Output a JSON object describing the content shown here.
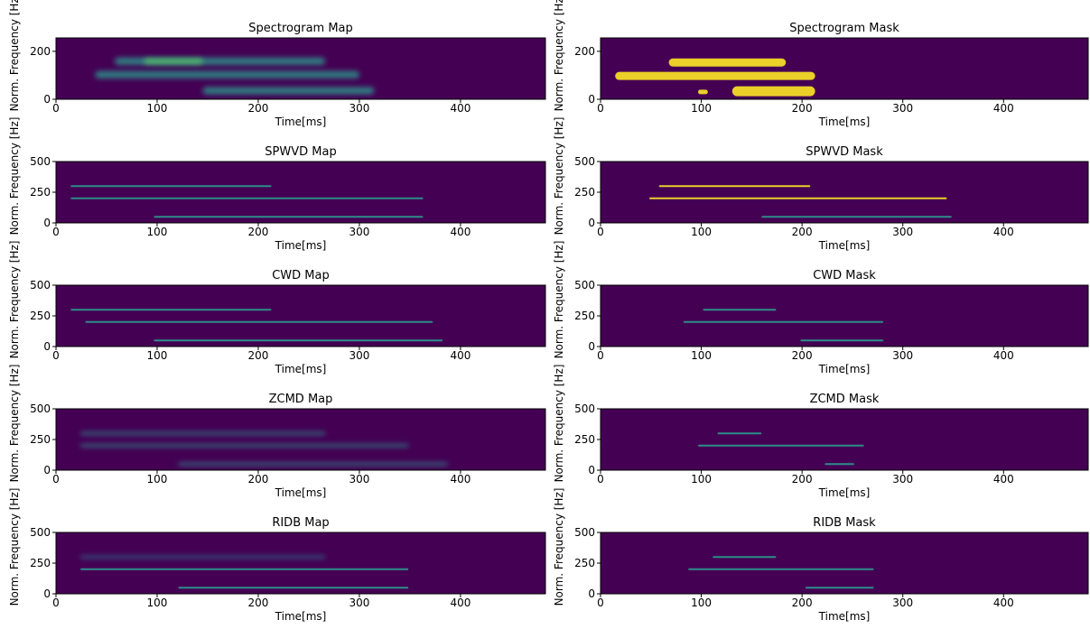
{
  "chart_data": [
    {
      "type": "heatmap",
      "title": "Spectrogram Map",
      "xlabel": "Time[ms]",
      "ylabel": "Norm. Frequency [Hz]",
      "xlim": [
        0,
        484
      ],
      "ylim": [
        0,
        256
      ],
      "xticks": [
        0,
        100,
        200,
        300,
        400
      ],
      "yticks": [
        0,
        200
      ]
    },
    {
      "type": "heatmap",
      "title": "Spectrogram Mask",
      "xlabel": "Time[ms]",
      "ylabel": "Norm. Frequency [Hz]",
      "xlim": [
        0,
        484
      ],
      "ylim": [
        0,
        256
      ],
      "xticks": [
        0,
        100,
        200,
        300,
        400
      ],
      "yticks": [
        0,
        200
      ]
    },
    {
      "type": "heatmap",
      "title": "SPWVD Map",
      "xlabel": "Time[ms]",
      "ylabel": "Norm. Frequency [Hz]",
      "xlim": [
        0,
        484
      ],
      "ylim": [
        0,
        500
      ],
      "xticks": [
        0,
        100,
        200,
        300,
        400
      ],
      "yticks": [
        0,
        250,
        500
      ]
    },
    {
      "type": "heatmap",
      "title": "SPWVD Mask",
      "xlabel": "Time[ms]",
      "ylabel": "Norm. Frequency [Hz]",
      "xlim": [
        0,
        484
      ],
      "ylim": [
        0,
        500
      ],
      "xticks": [
        0,
        100,
        200,
        300,
        400
      ],
      "yticks": [
        0,
        250,
        500
      ]
    },
    {
      "type": "heatmap",
      "title": "CWD Map",
      "xlabel": "Time[ms]",
      "ylabel": "Norm. Frequency [Hz]",
      "xlim": [
        0,
        484
      ],
      "ylim": [
        0,
        500
      ],
      "xticks": [
        0,
        100,
        200,
        300,
        400
      ],
      "yticks": [
        0,
        250,
        500
      ]
    },
    {
      "type": "heatmap",
      "title": "CWD Mask",
      "xlabel": "Time[ms]",
      "ylabel": "Norm. Frequency [Hz]",
      "xlim": [
        0,
        484
      ],
      "ylim": [
        0,
        500
      ],
      "xticks": [
        0,
        100,
        200,
        300,
        400
      ],
      "yticks": [
        0,
        250,
        500
      ]
    },
    {
      "type": "heatmap",
      "title": "ZCMD Map",
      "xlabel": "Time[ms]",
      "ylabel": "Norm. Frequency [Hz]",
      "xlim": [
        0,
        484
      ],
      "ylim": [
        0,
        500
      ],
      "xticks": [
        0,
        100,
        200,
        300,
        400
      ],
      "yticks": [
        0,
        250,
        500
      ]
    },
    {
      "type": "heatmap",
      "title": "ZCMD Mask",
      "xlabel": "Time[ms]",
      "ylabel": "Norm. Frequency [Hz]",
      "xlim": [
        0,
        484
      ],
      "ylim": [
        0,
        500
      ],
      "xticks": [
        0,
        100,
        200,
        300,
        400
      ],
      "yticks": [
        0,
        250,
        500
      ]
    },
    {
      "type": "heatmap",
      "title": "RIDB Map",
      "xlabel": "Time[ms]",
      "ylabel": "Norm. Frequency [Hz]",
      "xlim": [
        0,
        484
      ],
      "ylim": [
        0,
        500
      ],
      "xticks": [
        0,
        100,
        200,
        300,
        400
      ],
      "yticks": [
        0,
        250,
        500
      ]
    },
    {
      "type": "heatmap",
      "title": "RIDB Mask",
      "xlabel": "Time[ms]",
      "ylabel": "Norm. Frequency [Hz]",
      "xlim": [
        0,
        484
      ],
      "ylim": [
        0,
        500
      ],
      "xticks": [
        0,
        100,
        200,
        300,
        400
      ],
      "yticks": [
        0,
        250,
        500
      ]
    }
  ]
}
